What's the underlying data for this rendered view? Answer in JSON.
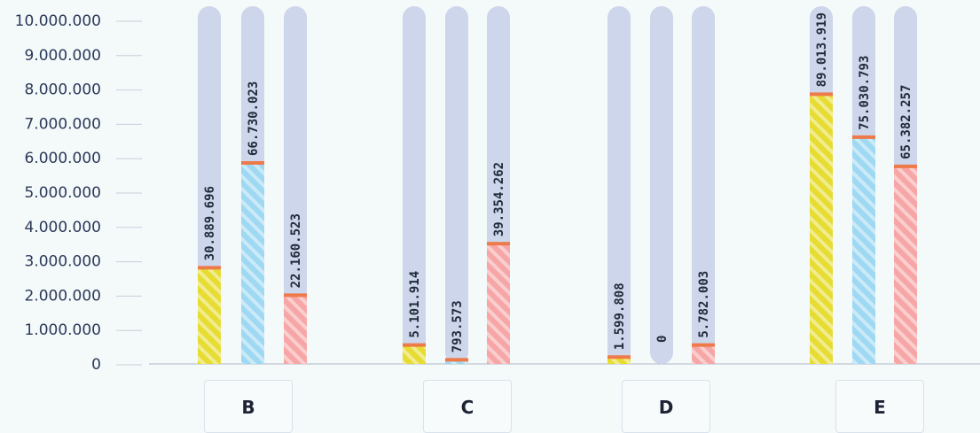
{
  "chart_data": {
    "type": "bar",
    "categories": [
      "B",
      "C",
      "D",
      "E"
    ],
    "series": [
      {
        "color": "#e6dc32",
        "values": [
          2800000,
          550000,
          200000,
          7850000
        ],
        "labels": [
          "30.889.696",
          "5.101.914",
          "1.599.808",
          "89.013.919"
        ]
      },
      {
        "color": "#9fd8f2",
        "values": [
          5850000,
          120000,
          0,
          6600000
        ],
        "labels": [
          "66.730.023",
          "793.573",
          "0",
          "75.030.793"
        ]
      },
      {
        "color": "#f6a6a6",
        "values": [
          2000000,
          3500000,
          550000,
          5750000
        ],
        "labels": [
          "22.160.523",
          "39.354.262",
          "5.782.003",
          "65.382.257"
        ]
      }
    ],
    "yticks": [
      "0",
      "1.000.000",
      "2.000.000",
      "3.000.000",
      "4.000.000",
      "5.000.000",
      "6.000.000",
      "7.000.000",
      "8.000.000",
      "9.000.000",
      "10.000.000"
    ],
    "ylim": [
      0,
      10000000
    ],
    "track_color": "#cdd6ea",
    "cap_color": "#ee7a4a",
    "grid": false,
    "legend": "none"
  }
}
